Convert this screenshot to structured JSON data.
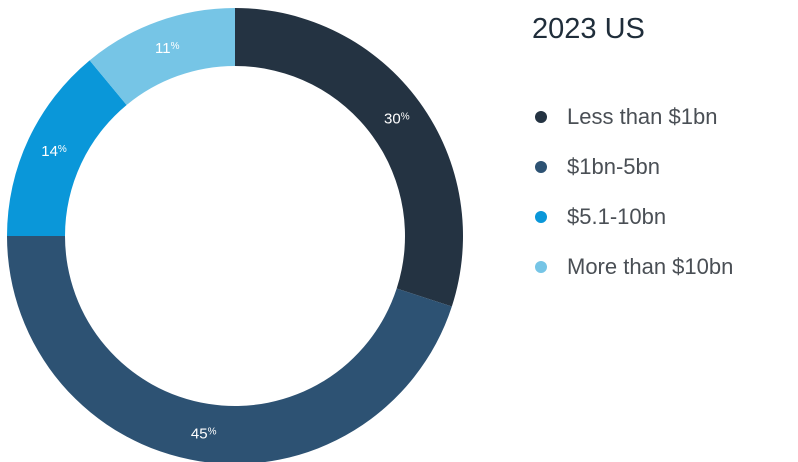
{
  "chart_data": {
    "type": "pie",
    "variant": "donut",
    "title": "2023 US",
    "legend_position": "right",
    "percent_sign": "%",
    "slices": [
      {
        "label": "Less than $1bn",
        "value": 30,
        "color": "#243342"
      },
      {
        "label": "$1bn-5bn",
        "value": 45,
        "color": "#2d5273"
      },
      {
        "label": "$5.1-10bn",
        "value": 14,
        "color": "#0a97d9"
      },
      {
        "label": "More than $10bn",
        "value": 11,
        "color": "#76c5e6"
      }
    ]
  }
}
